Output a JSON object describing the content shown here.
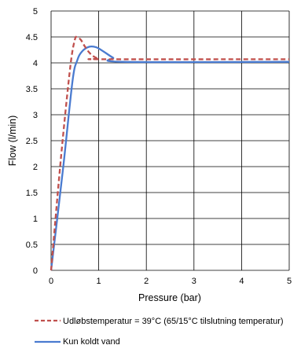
{
  "chart_data": {
    "type": "line",
    "xlabel": "Pressure (bar)",
    "ylabel": "Flow (l/min)",
    "xlim": [
      0,
      5
    ],
    "ylim": [
      0,
      5
    ],
    "xticks": [
      "0",
      "1",
      "2",
      "3",
      "4",
      "5"
    ],
    "yticks": [
      "0",
      "0.5",
      "1",
      "1.5",
      "2",
      "2.5",
      "3",
      "3.5",
      "4",
      "4.5",
      "5"
    ],
    "grid": true,
    "legend_position": "bottom",
    "series": [
      {
        "name": "Udløbstemperatur = 39°C (65/15°C tilslutning temperatur)",
        "style": "dashed",
        "color": "#c0504d",
        "x": [
          0,
          0.2,
          0.4,
          0.5,
          0.55,
          0.62,
          0.7,
          0.8,
          0.9,
          1.0,
          1.1,
          5
        ],
        "y": [
          0,
          2.1,
          3.9,
          4.45,
          4.48,
          4.45,
          4.33,
          4.2,
          4.12,
          4.08,
          4.07,
          4.07
        ]
      },
      {
        "name": "Kun koldt vand",
        "style": "solid",
        "color": "#4a7bd0",
        "x": [
          0,
          0.25,
          0.45,
          0.55,
          0.65,
          0.8,
          0.95,
          1.1,
          1.3,
          1.5,
          5
        ],
        "y": [
          0,
          1.95,
          3.65,
          4.05,
          4.22,
          4.31,
          4.3,
          4.22,
          4.1,
          4.02,
          4.02
        ]
      }
    ]
  }
}
